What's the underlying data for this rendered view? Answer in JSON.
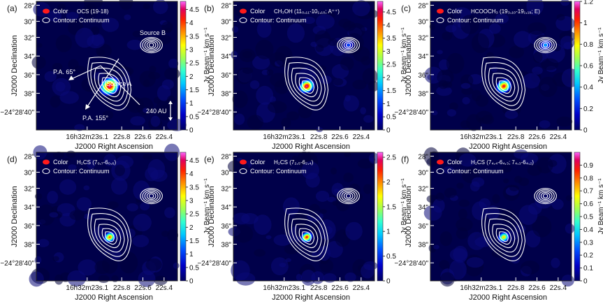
{
  "colors": {
    "contour": "#ffffff",
    "marker": "#ff1a1a",
    "axis": "#222222",
    "annotation": "#ffffff"
  },
  "shared_axes": {
    "xlabel": "J2000 Right Ascension",
    "ylabel": "J2000 Declination",
    "x_ticks": [
      "16h32m23s.1",
      "22s.8",
      "22s.6",
      "22s.4"
    ],
    "y_ticks": [
      "28\"",
      "30\"",
      "32\"",
      "34\"",
      "36\"",
      "38\"",
      "−24°28'40\""
    ],
    "ylim_arcsec": [
      27.5,
      40.5
    ]
  },
  "legend": {
    "color_label": "Color",
    "contour_label": "Contour: Continuum"
  },
  "annotations": {
    "source_a": "Source A",
    "source_b": "Source B",
    "pa_65": "P.A. 65°",
    "pa_155": "P.A. 155°",
    "scale_bar": "240 AU"
  },
  "chart_data": [
    {
      "type": "heatmap",
      "panel": "(a)",
      "tracer": "OCS (19-18)",
      "colorbar_label": "Jy Beam⁻¹ km s⁻¹",
      "colorbar_range": [
        0,
        4.8
      ],
      "colorbar_ticks": [
        "0",
        "0.5",
        "1",
        "1.5",
        "2",
        "2.5",
        "3",
        "3.5",
        "4",
        "4.5"
      ],
      "emission": [
        {
          "source": "Source A",
          "peak_fraction": 1.0,
          "core_size": "large"
        },
        {
          "source": "Source B",
          "peak_fraction": 0.0,
          "core_size": "none"
        }
      ]
    },
    {
      "type": "heatmap",
      "panel": "(b)",
      "tracer": "CH₃OH (11₀,₁₁-10₁,₁₀; A⁺⁺)",
      "colorbar_label": "Jy Beam⁻¹ km s⁻¹",
      "colorbar_range": [
        0,
        4.9
      ],
      "colorbar_ticks": [
        "0",
        "0.5",
        "1",
        "1.5",
        "2",
        "2.5",
        "3",
        "3.5",
        "4",
        "4.5"
      ],
      "emission": [
        {
          "source": "Source A",
          "peak_fraction": 1.0,
          "core_size": "medium"
        },
        {
          "source": "Source B",
          "peak_fraction": 0.3,
          "core_size": "small"
        }
      ]
    },
    {
      "type": "heatmap",
      "panel": "(c)",
      "tracer": "HCOOCH₃ (19₃,₁₀-19₁,₁₉; E)",
      "colorbar_label": "Jy Beam⁻¹ km s⁻¹",
      "colorbar_range": [
        0,
        1.2
      ],
      "colorbar_ticks": [
        "0",
        "0.2",
        "0.4",
        "0.6",
        "0.8",
        "1",
        "1.2"
      ],
      "emission": [
        {
          "source": "Source A",
          "peak_fraction": 0.95,
          "core_size": "medium"
        },
        {
          "source": "Source B",
          "peak_fraction": 0.45,
          "core_size": "small"
        }
      ]
    },
    {
      "type": "heatmap",
      "panel": "(d)",
      "tracer": "H₂CS (7₀,₇-6₀,₆)",
      "colorbar_label": "Jy Beam⁻¹ km s⁻¹",
      "colorbar_range": [
        0,
        4.8
      ],
      "colorbar_ticks": [
        "0",
        "0.5",
        "1",
        "1.5",
        "2",
        "2.5",
        "3",
        "3.5",
        "4",
        "4.5"
      ],
      "emission": [
        {
          "source": "Source A",
          "peak_fraction": 0.9,
          "core_size": "small"
        },
        {
          "source": "Source B",
          "peak_fraction": 0.08,
          "core_size": "small"
        }
      ]
    },
    {
      "type": "heatmap",
      "panel": "(e)",
      "tracer": "H₂CS (7₂,₅-6₂,₄)",
      "colorbar_label": "Jy Beam⁻¹ km s⁻¹",
      "colorbar_range": [
        0,
        2.6
      ],
      "colorbar_ticks": [
        "0",
        "0.5",
        "1",
        "1.5",
        "2",
        "2.5"
      ],
      "emission": [
        {
          "source": "Source A",
          "peak_fraction": 0.95,
          "core_size": "small"
        },
        {
          "source": "Source B",
          "peak_fraction": 0.1,
          "core_size": "small"
        }
      ]
    },
    {
      "type": "heatmap",
      "panel": "(f)",
      "tracer": "H₂CS (7₄,₄-6₄,₃; 7₄,₃-6₄,₂)",
      "colorbar_label": "Jy Beam⁻¹ km s⁻¹",
      "colorbar_range": [
        0,
        1.0
      ],
      "colorbar_ticks": [
        "0",
        "0.1",
        "0.2",
        "0.3",
        "0.4",
        "0.5",
        "0.6",
        "0.7",
        "0.8",
        "0.9"
      ],
      "emission": [
        {
          "source": "Source A",
          "peak_fraction": 0.85,
          "core_size": "small"
        },
        {
          "source": "Source B",
          "peak_fraction": 0.05,
          "core_size": "small"
        }
      ]
    }
  ]
}
